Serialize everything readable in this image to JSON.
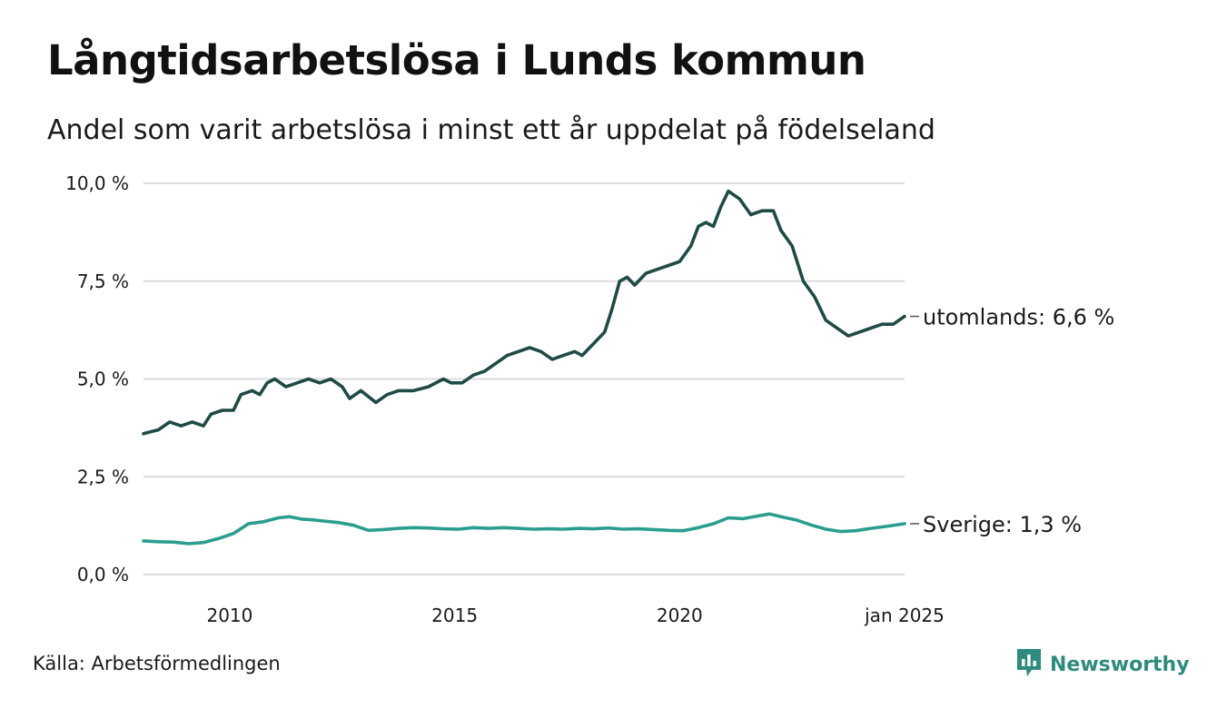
{
  "brand": {
    "name": "Newsworthy",
    "logo_icon": "newsworthy-chart-bubble-icon",
    "color": "#2e8b7d"
  },
  "source": "Källa: Arbetsförmedlingen",
  "chart_data": {
    "type": "line",
    "title": "Långtidsarbetslösa i Lunds kommun",
    "subtitle": "Andel som varit arbetslösa i minst ett år uppdelat på födelseland",
    "xlabel": "",
    "ylabel": "",
    "x_start": "2008-02",
    "x_end": "2025-01",
    "ylim": [
      0,
      10
    ],
    "y_ticks": [
      {
        "value": 0,
        "label": "0,0 %"
      },
      {
        "value": 2.5,
        "label": "2,5 %"
      },
      {
        "value": 5,
        "label": "5,0 %"
      },
      {
        "value": 7.5,
        "label": "7,5 %"
      },
      {
        "value": 10,
        "label": "10,0 %"
      }
    ],
    "x_ticks": [
      {
        "date": "2010-01",
        "label": "2010"
      },
      {
        "date": "2015-01",
        "label": "2015"
      },
      {
        "date": "2020-01",
        "label": "2020"
      },
      {
        "date": "2025-01",
        "label": "jan 2025"
      }
    ],
    "grid": true,
    "legend": "none",
    "series": [
      {
        "name": "utomlands",
        "color": "#1f4a45",
        "end_label": "utomlands: 6,6 %",
        "points": [
          [
            "2008-02",
            3.6
          ],
          [
            "2008-06",
            3.7
          ],
          [
            "2008-09",
            3.9
          ],
          [
            "2008-12",
            3.8
          ],
          [
            "2009-03",
            3.9
          ],
          [
            "2009-06",
            3.8
          ],
          [
            "2009-08",
            4.1
          ],
          [
            "2009-11",
            4.2
          ],
          [
            "2010-02",
            4.2
          ],
          [
            "2010-04",
            4.6
          ],
          [
            "2010-07",
            4.7
          ],
          [
            "2010-09",
            4.6
          ],
          [
            "2010-11",
            4.9
          ],
          [
            "2011-01",
            5.0
          ],
          [
            "2011-04",
            4.8
          ],
          [
            "2011-07",
            4.9
          ],
          [
            "2011-10",
            5.0
          ],
          [
            "2012-01",
            4.9
          ],
          [
            "2012-04",
            5.0
          ],
          [
            "2012-07",
            4.8
          ],
          [
            "2012-09",
            4.5
          ],
          [
            "2012-12",
            4.7
          ],
          [
            "2013-04",
            4.4
          ],
          [
            "2013-07",
            4.6
          ],
          [
            "2013-10",
            4.7
          ],
          [
            "2014-02",
            4.7
          ],
          [
            "2014-06",
            4.8
          ],
          [
            "2014-10",
            5.0
          ],
          [
            "2014-12",
            4.9
          ],
          [
            "2015-03",
            4.9
          ],
          [
            "2015-06",
            5.1
          ],
          [
            "2015-09",
            5.2
          ],
          [
            "2015-12",
            5.4
          ],
          [
            "2016-03",
            5.6
          ],
          [
            "2016-06",
            5.7
          ],
          [
            "2016-09",
            5.8
          ],
          [
            "2016-12",
            5.7
          ],
          [
            "2017-03",
            5.5
          ],
          [
            "2017-06",
            5.6
          ],
          [
            "2017-09",
            5.7
          ],
          [
            "2017-11",
            5.6
          ],
          [
            "2018-02",
            5.9
          ],
          [
            "2018-05",
            6.2
          ],
          [
            "2018-07",
            6.8
          ],
          [
            "2018-09",
            7.5
          ],
          [
            "2018-11",
            7.6
          ],
          [
            "2019-01",
            7.4
          ],
          [
            "2019-04",
            7.7
          ],
          [
            "2019-07",
            7.8
          ],
          [
            "2019-10",
            7.9
          ],
          [
            "2020-01",
            8.0
          ],
          [
            "2020-04",
            8.4
          ],
          [
            "2020-06",
            8.9
          ],
          [
            "2020-08",
            9.0
          ],
          [
            "2020-10",
            8.9
          ],
          [
            "2020-12",
            9.4
          ],
          [
            "2021-02",
            9.8
          ],
          [
            "2021-05",
            9.6
          ],
          [
            "2021-08",
            9.2
          ],
          [
            "2021-11",
            9.3
          ],
          [
            "2022-02",
            9.3
          ],
          [
            "2022-04",
            8.8
          ],
          [
            "2022-07",
            8.4
          ],
          [
            "2022-10",
            7.5
          ],
          [
            "2023-01",
            7.1
          ],
          [
            "2023-04",
            6.5
          ],
          [
            "2023-07",
            6.3
          ],
          [
            "2023-10",
            6.1
          ],
          [
            "2024-01",
            6.2
          ],
          [
            "2024-04",
            6.3
          ],
          [
            "2024-07",
            6.4
          ],
          [
            "2024-10",
            6.4
          ],
          [
            "2025-01",
            6.6
          ]
        ]
      },
      {
        "name": "Sverige",
        "color": "#2a9d8f",
        "end_label": "Sverige: 1,3 %",
        "points": [
          [
            "2008-02",
            0.86
          ],
          [
            "2008-06",
            0.84
          ],
          [
            "2008-10",
            0.83
          ],
          [
            "2009-02",
            0.79
          ],
          [
            "2009-06",
            0.82
          ],
          [
            "2009-10",
            0.92
          ],
          [
            "2010-02",
            1.05
          ],
          [
            "2010-06",
            1.3
          ],
          [
            "2010-10",
            1.35
          ],
          [
            "2011-02",
            1.45
          ],
          [
            "2011-05",
            1.48
          ],
          [
            "2011-08",
            1.42
          ],
          [
            "2011-11",
            1.4
          ],
          [
            "2012-02",
            1.37
          ],
          [
            "2012-06",
            1.33
          ],
          [
            "2012-10",
            1.26
          ],
          [
            "2013-02",
            1.13
          ],
          [
            "2013-06",
            1.15
          ],
          [
            "2013-10",
            1.18
          ],
          [
            "2014-02",
            1.2
          ],
          [
            "2014-06",
            1.19
          ],
          [
            "2014-10",
            1.17
          ],
          [
            "2015-02",
            1.16
          ],
          [
            "2015-06",
            1.2
          ],
          [
            "2015-10",
            1.18
          ],
          [
            "2016-02",
            1.2
          ],
          [
            "2016-06",
            1.18
          ],
          [
            "2016-10",
            1.16
          ],
          [
            "2017-02",
            1.17
          ],
          [
            "2017-06",
            1.16
          ],
          [
            "2017-10",
            1.18
          ],
          [
            "2018-02",
            1.17
          ],
          [
            "2018-06",
            1.19
          ],
          [
            "2018-10",
            1.16
          ],
          [
            "2019-02",
            1.17
          ],
          [
            "2019-06",
            1.15
          ],
          [
            "2019-10",
            1.13
          ],
          [
            "2020-02",
            1.12
          ],
          [
            "2020-06",
            1.2
          ],
          [
            "2020-10",
            1.3
          ],
          [
            "2021-02",
            1.45
          ],
          [
            "2021-06",
            1.43
          ],
          [
            "2021-10",
            1.5
          ],
          [
            "2022-01",
            1.55
          ],
          [
            "2022-04",
            1.48
          ],
          [
            "2022-08",
            1.4
          ],
          [
            "2022-12",
            1.27
          ],
          [
            "2023-04",
            1.16
          ],
          [
            "2023-08",
            1.1
          ],
          [
            "2023-12",
            1.12
          ],
          [
            "2024-04",
            1.18
          ],
          [
            "2024-08",
            1.23
          ],
          [
            "2025-01",
            1.3
          ]
        ]
      }
    ]
  }
}
